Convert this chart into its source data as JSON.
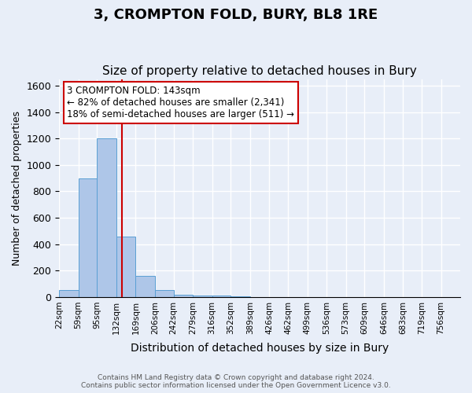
{
  "title": "3, CROMPTON FOLD, BURY, BL8 1RE",
  "subtitle": "Size of property relative to detached houses in Bury",
  "xlabel": "Distribution of detached houses by size in Bury",
  "ylabel": "Number of detached properties",
  "footnote": "Contains HM Land Registry data © Crown copyright and database right 2024.\nContains public sector information licensed under the Open Government Licence v3.0.",
  "bin_labels": [
    "22sqm",
    "59sqm",
    "95sqm",
    "132sqm",
    "169sqm",
    "206sqm",
    "242sqm",
    "279sqm",
    "316sqm",
    "352sqm",
    "389sqm",
    "426sqm",
    "462sqm",
    "499sqm",
    "536sqm",
    "573sqm",
    "609sqm",
    "646sqm",
    "683sqm",
    "719sqm",
    "756sqm"
  ],
  "bin_edges": [
    22,
    59,
    95,
    132,
    169,
    206,
    242,
    279,
    316,
    352,
    389,
    426,
    462,
    499,
    536,
    573,
    609,
    646,
    683,
    719,
    756
  ],
  "bar_heights": [
    50,
    900,
    1200,
    460,
    160,
    55,
    20,
    10,
    10,
    5,
    0,
    0,
    0,
    0,
    0,
    0,
    0,
    0,
    0,
    0
  ],
  "bar_color": "#aec6e8",
  "bar_edge_color": "#5a9fd4",
  "vline_x": 143,
  "vline_color": "#cc0000",
  "annotation_text": "3 CROMPTON FOLD: 143sqm\n← 82% of detached houses are smaller (2,341)\n18% of semi-detached houses are larger (511) →",
  "annotation_box_color": "#ffffff",
  "annotation_border_color": "#cc0000",
  "ylim": [
    0,
    1650
  ],
  "yticks": [
    0,
    200,
    400,
    600,
    800,
    1000,
    1200,
    1400,
    1600
  ],
  "background_color": "#e8eef8",
  "plot_background": "#e8eef8",
  "grid_color": "#ffffff",
  "title_fontsize": 13,
  "subtitle_fontsize": 11
}
